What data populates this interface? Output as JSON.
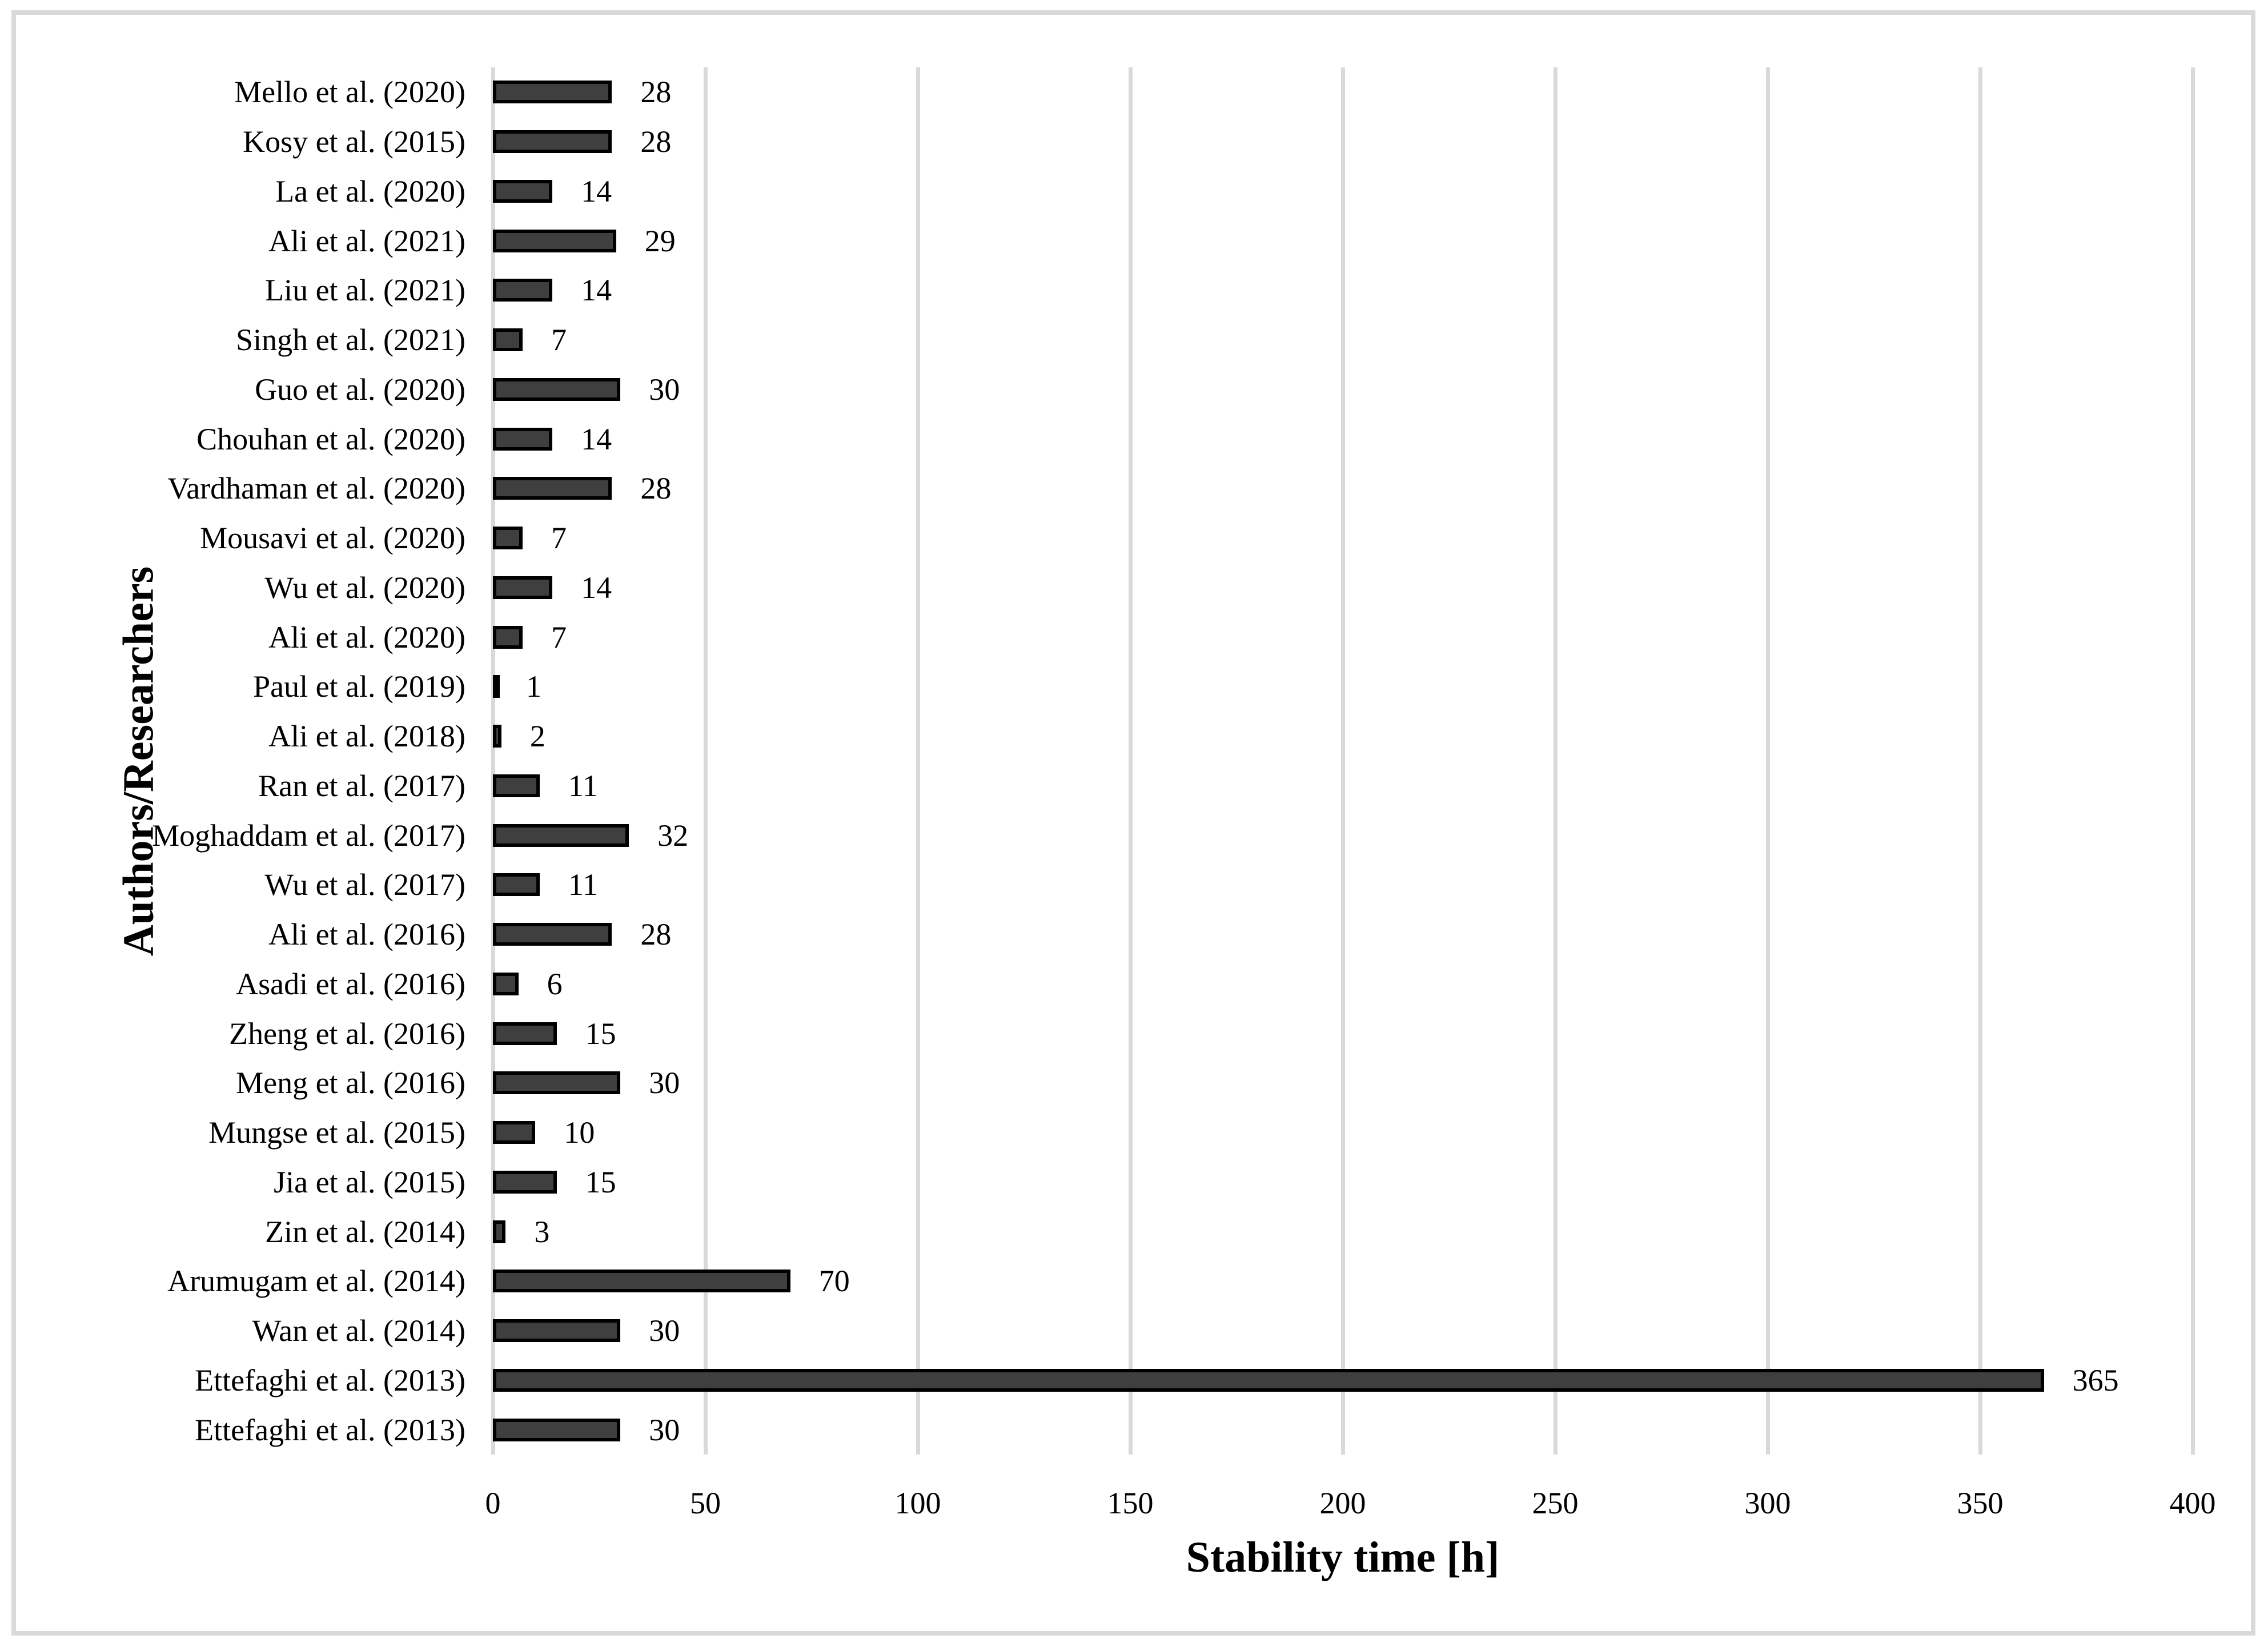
{
  "chart_data": {
    "type": "bar",
    "orientation": "horizontal",
    "title": "",
    "xlabel": "Stability time [h]",
    "ylabel": "Authors/Researchers",
    "categories": [
      "Mello et al. (2020)",
      "Kosy et al. (2015)",
      "La et al. (2020)",
      "Ali et al. (2021)",
      "Liu et al. (2021)",
      "Singh et al. (2021)",
      "Guo et al. (2020)",
      "Chouhan et al. (2020)",
      "Vardhaman et al. (2020)",
      "Mousavi et al. (2020)",
      "Wu et al. (2020)",
      "Ali et al. (2020)",
      "Paul et al. (2019)",
      "Ali et al. (2018)",
      "Ran et al. (2017)",
      "Moghaddam et al. (2017)",
      "Wu et al. (2017)",
      "Ali et al. (2016)",
      "Asadi et al. (2016)",
      "Zheng et al. (2016)",
      "Meng et al. (2016)",
      "Mungse et al. (2015)",
      "Jia et al. (2015)",
      "Zin et al. (2014)",
      "Arumugam et al. (2014)",
      "Wan et al. (2014)",
      "Ettefaghi et al. (2013)",
      "Ettefaghi et al. (2013)"
    ],
    "values": [
      28,
      28,
      14,
      29,
      14,
      7,
      30,
      14,
      28,
      7,
      14,
      7,
      1,
      2,
      11,
      32,
      11,
      28,
      6,
      15,
      30,
      10,
      15,
      3,
      70,
      30,
      365,
      30
    ],
    "data_labels": [
      "28",
      "28",
      "14",
      "29",
      "14",
      "7",
      "30",
      "14",
      "28",
      "7",
      "14",
      "7",
      "1",
      "2",
      "11",
      "32",
      "11",
      "28",
      "6",
      "15",
      "30",
      "10",
      "15",
      "3",
      "70",
      "30",
      "365",
      "30"
    ],
    "xlim": [
      0,
      400
    ],
    "xticks": [
      0,
      50,
      100,
      150,
      200,
      250,
      300,
      350,
      400
    ],
    "xtick_labels": [
      "0",
      "50",
      "100",
      "150",
      "200",
      "250",
      "300",
      "350",
      "400"
    ],
    "grid": "vertical-only",
    "legend": "none",
    "colors": {
      "bar_fill": "#3f3f3f",
      "bar_border": "#000000",
      "gridline": "#d9d9d9",
      "frame_border": "#d9d9d9",
      "text": "#000000",
      "background": "#ffffff"
    }
  }
}
